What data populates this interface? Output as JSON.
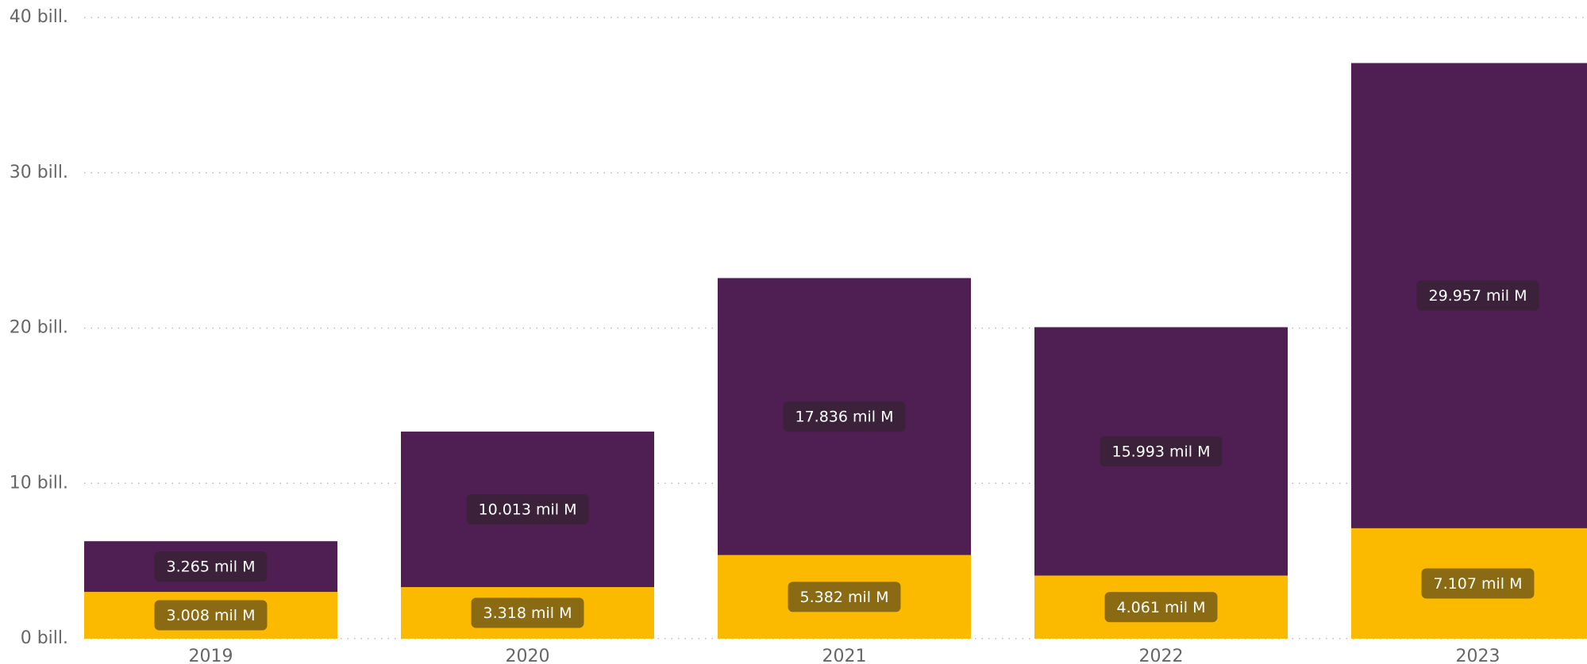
{
  "chart_data": {
    "type": "bar",
    "stacked": true,
    "categories": [
      "2019",
      "2020",
      "2021",
      "2022",
      "2023"
    ],
    "series": [
      {
        "color": "#fbb900",
        "label_bg": "#8a6a12",
        "values": [
          3.008,
          3.318,
          5.382,
          4.061,
          7.107
        ],
        "value_labels": [
          "3.008 mil M",
          "3.318 mil M",
          "5.382 mil M",
          "4.061 mil M",
          "7.107 mil M"
        ]
      },
      {
        "color": "#4f1e52",
        "label_bg": "#3b2139",
        "values": [
          3.265,
          10.013,
          17.836,
          15.993,
          29.957
        ],
        "value_labels": [
          "3.265 mil M",
          "10.013 mil M",
          "17.836 mil M",
          "15.993 mil M",
          "29.957 mil M"
        ]
      }
    ],
    "ylim": [
      0,
      40
    ],
    "yticks": [
      {
        "value": 0,
        "label": "0 bill."
      },
      {
        "value": 10,
        "label": "10 bill."
      },
      {
        "value": 20,
        "label": "20 bill."
      },
      {
        "value": 30,
        "label": "30 bill."
      },
      {
        "value": 40,
        "label": "40 bill."
      }
    ],
    "grid": true
  }
}
